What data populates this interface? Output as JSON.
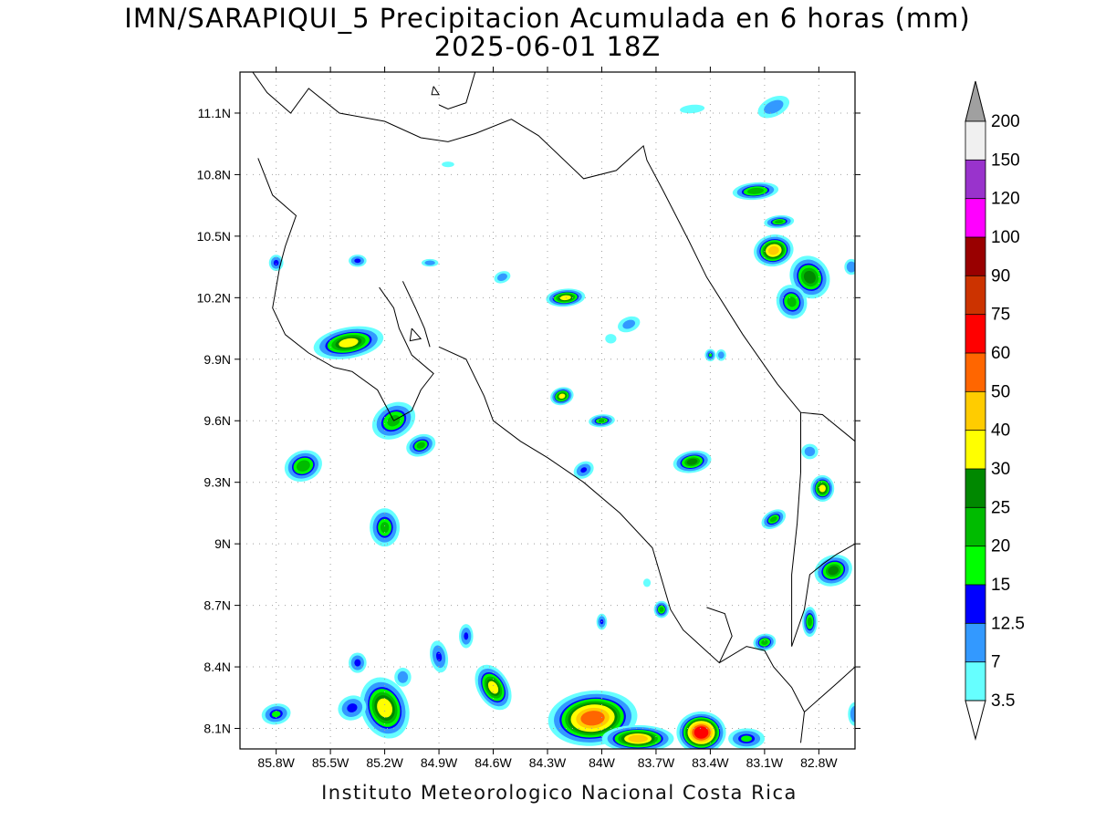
{
  "title": {
    "line1": "IMN/SARAPIQUI_5 Precipitacion Acumulada en 6 horas (mm)",
    "line2": "2025-06-01 18Z"
  },
  "footer": "Instituto Meteorologico Nacional Costa Rica",
  "map": {
    "lon_range": [
      -86.0,
      -82.6
    ],
    "lat_range": [
      8.0,
      11.3
    ],
    "grid": true,
    "lat_ticks": [
      {
        "value": 11.1,
        "label": "11.1N"
      },
      {
        "value": 10.8,
        "label": "10.8N"
      },
      {
        "value": 10.5,
        "label": "10.5N"
      },
      {
        "value": 10.2,
        "label": "10.2N"
      },
      {
        "value": 9.9,
        "label": "9.9N"
      },
      {
        "value": 9.6,
        "label": "9.6N"
      },
      {
        "value": 9.3,
        "label": "9.3N"
      },
      {
        "value": 9.0,
        "label": "9N"
      },
      {
        "value": 8.7,
        "label": "8.7N"
      },
      {
        "value": 8.4,
        "label": "8.4N"
      },
      {
        "value": 8.1,
        "label": "8.1N"
      }
    ],
    "lon_ticks": [
      {
        "value": -85.8,
        "label": "85.8W"
      },
      {
        "value": -85.5,
        "label": "85.5W"
      },
      {
        "value": -85.2,
        "label": "85.2W"
      },
      {
        "value": -84.9,
        "label": "84.9W"
      },
      {
        "value": -84.6,
        "label": "84.6W"
      },
      {
        "value": -84.3,
        "label": "84.3W"
      },
      {
        "value": -84.0,
        "label": "84W"
      },
      {
        "value": -83.7,
        "label": "83.7W"
      },
      {
        "value": -83.4,
        "label": "83.4W"
      },
      {
        "value": -83.1,
        "label": "83.1W"
      },
      {
        "value": -82.8,
        "label": "82.8W"
      }
    ],
    "coastline": [
      [
        [
          -85.93,
          11.3
        ],
        [
          -85.85,
          11.2
        ],
        [
          -85.72,
          11.1
        ],
        [
          -85.62,
          11.22
        ],
        [
          -85.45,
          11.1
        ],
        [
          -85.2,
          11.06
        ],
        [
          -85.0,
          10.98
        ],
        [
          -84.85,
          10.96
        ],
        [
          -84.7,
          11.0
        ],
        [
          -84.5,
          11.07
        ],
        [
          -84.35,
          10.99
        ],
        [
          -84.1,
          10.78
        ],
        [
          -83.92,
          10.82
        ],
        [
          -83.77,
          10.94
        ],
        [
          -83.75,
          10.87
        ],
        [
          -83.66,
          10.72
        ],
        [
          -83.52,
          10.48
        ],
        [
          -83.42,
          10.3
        ],
        [
          -83.22,
          10.02
        ],
        [
          -83.03,
          9.78
        ],
        [
          -82.9,
          9.64
        ],
        [
          -82.78,
          9.63
        ],
        [
          -82.6,
          9.5
        ]
      ],
      [
        [
          -85.9,
          10.88
        ],
        [
          -85.82,
          10.7
        ],
        [
          -85.69,
          10.6
        ],
        [
          -85.75,
          10.45
        ],
        [
          -85.78,
          10.35
        ],
        [
          -85.82,
          10.15
        ],
        [
          -85.75,
          10.02
        ],
        [
          -85.62,
          9.93
        ],
        [
          -85.48,
          9.86
        ],
        [
          -85.38,
          9.84
        ],
        [
          -85.24,
          9.75
        ],
        [
          -85.15,
          9.6
        ],
        [
          -85.05,
          9.65
        ],
        [
          -85.0,
          9.75
        ],
        [
          -84.93,
          9.83
        ],
        [
          -85.05,
          9.92
        ],
        [
          -85.12,
          10.05
        ],
        [
          -85.15,
          10.15
        ],
        [
          -85.23,
          10.25
        ]
      ],
      [
        [
          -84.9,
          9.96
        ],
        [
          -84.75,
          9.9
        ],
        [
          -84.65,
          9.72
        ],
        [
          -84.6,
          9.6
        ],
        [
          -84.45,
          9.5
        ],
        [
          -84.3,
          9.42
        ],
        [
          -84.1,
          9.3
        ],
        [
          -83.9,
          9.15
        ],
        [
          -83.72,
          8.98
        ],
        [
          -83.66,
          8.8
        ],
        [
          -83.62,
          8.68
        ],
        [
          -83.55,
          8.58
        ],
        [
          -83.45,
          8.5
        ],
        [
          -83.35,
          8.42
        ],
        [
          -83.28,
          8.55
        ],
        [
          -83.32,
          8.66
        ],
        [
          -83.42,
          8.69
        ]
      ],
      [
        [
          -83.35,
          8.42
        ],
        [
          -83.2,
          8.5
        ],
        [
          -83.1,
          8.48
        ],
        [
          -83.05,
          8.4
        ],
        [
          -82.95,
          8.3
        ],
        [
          -82.88,
          8.18
        ],
        [
          -82.9,
          8.03
        ]
      ],
      [
        [
          -82.6,
          8.4
        ],
        [
          -82.7,
          8.32
        ],
        [
          -82.88,
          8.18
        ]
      ],
      [
        [
          -82.95,
          8.5
        ],
        [
          -82.88,
          8.68
        ],
        [
          -82.85,
          8.85
        ],
        [
          -82.78,
          8.9
        ],
        [
          -82.7,
          8.95
        ],
        [
          -82.6,
          9.0
        ]
      ],
      [
        [
          -82.9,
          9.64
        ],
        [
          -82.9,
          9.35
        ],
        [
          -82.92,
          9.1
        ],
        [
          -82.95,
          8.85
        ],
        [
          -82.95,
          8.5
        ]
      ],
      [
        [
          -85.1,
          10.28
        ],
        [
          -85.03,
          10.15
        ],
        [
          -84.98,
          10.05
        ],
        [
          -84.95,
          9.96
        ]
      ],
      [
        [
          -85.05,
          10.05
        ],
        [
          -85.0,
          10.0
        ],
        [
          -85.06,
          9.99
        ],
        [
          -85.05,
          10.05
        ]
      ],
      [
        [
          -84.93,
          11.23
        ],
        [
          -84.9,
          11.19
        ],
        [
          -84.94,
          11.19
        ],
        [
          -84.93,
          11.23
        ]
      ],
      [
        [
          -84.7,
          11.3
        ],
        [
          -84.75,
          11.15
        ],
        [
          -84.85,
          11.12
        ],
        [
          -84.9,
          11.14
        ]
      ]
    ],
    "rain_cells": [
      {
        "lon": -85.4,
        "lat": 9.98,
        "rx": 0.18,
        "ry": 0.07,
        "peak": 32,
        "rot": -10
      },
      {
        "lon": -85.65,
        "lat": 9.38,
        "rx": 0.1,
        "ry": 0.07,
        "peak": 24,
        "rot": -20
      },
      {
        "lon": -85.15,
        "lat": 9.6,
        "rx": 0.12,
        "ry": 0.08,
        "peak": 22,
        "rot": -30
      },
      {
        "lon": -85.0,
        "lat": 9.48,
        "rx": 0.08,
        "ry": 0.05,
        "peak": 20,
        "rot": -20
      },
      {
        "lon": -85.2,
        "lat": 9.08,
        "rx": 0.08,
        "ry": 0.09,
        "peak": 20,
        "rot": 0
      },
      {
        "lon": -84.1,
        "lat": 9.36,
        "rx": 0.06,
        "ry": 0.04,
        "peak": 13,
        "rot": -30
      },
      {
        "lon": -84.2,
        "lat": 10.2,
        "rx": 0.1,
        "ry": 0.04,
        "peak": 32,
        "rot": -5
      },
      {
        "lon": -84.22,
        "lat": 9.72,
        "rx": 0.06,
        "ry": 0.04,
        "peak": 31,
        "rot": -15
      },
      {
        "lon": -84.0,
        "lat": 9.6,
        "rx": 0.07,
        "ry": 0.03,
        "peak": 20,
        "rot": -5
      },
      {
        "lon": -83.5,
        "lat": 9.4,
        "rx": 0.1,
        "ry": 0.05,
        "peak": 26,
        "rot": -10
      },
      {
        "lon": -83.4,
        "lat": 9.92,
        "rx": 0.03,
        "ry": 0.03,
        "peak": 15,
        "rot": 0
      },
      {
        "lon": -83.85,
        "lat": 10.07,
        "rx": 0.07,
        "ry": 0.04,
        "peak": 9,
        "rot": -20
      },
      {
        "lon": -84.55,
        "lat": 10.3,
        "rx": 0.05,
        "ry": 0.03,
        "peak": 10,
        "rot": -20
      },
      {
        "lon": -85.35,
        "lat": 10.38,
        "rx": 0.05,
        "ry": 0.03,
        "peak": 14,
        "rot": 0
      },
      {
        "lon": -85.8,
        "lat": 10.37,
        "rx": 0.04,
        "ry": 0.04,
        "peak": 14,
        "rot": 0
      },
      {
        "lon": -84.95,
        "lat": 10.37,
        "rx": 0.05,
        "ry": 0.02,
        "peak": 10,
        "rot": 0
      },
      {
        "lon": -83.05,
        "lat": 10.43,
        "rx": 0.1,
        "ry": 0.07,
        "peak": 42,
        "rot": -10
      },
      {
        "lon": -82.85,
        "lat": 10.3,
        "rx": 0.1,
        "ry": 0.1,
        "peak": 28,
        "rot": -30
      },
      {
        "lon": -82.95,
        "lat": 10.18,
        "rx": 0.08,
        "ry": 0.08,
        "peak": 22,
        "rot": -20
      },
      {
        "lon": -83.15,
        "lat": 10.72,
        "rx": 0.12,
        "ry": 0.04,
        "peak": 24,
        "rot": -5
      },
      {
        "lon": -83.02,
        "lat": 10.57,
        "rx": 0.08,
        "ry": 0.03,
        "peak": 20,
        "rot": -5
      },
      {
        "lon": -83.05,
        "lat": 11.13,
        "rx": 0.1,
        "ry": 0.05,
        "peak": 10,
        "rot": -25
      },
      {
        "lon": -83.5,
        "lat": 11.12,
        "rx": 0.1,
        "ry": 0.03,
        "peak": 5,
        "rot": -5
      },
      {
        "lon": -84.85,
        "lat": 10.85,
        "rx": 0.05,
        "ry": 0.02,
        "peak": 5,
        "rot": 0
      },
      {
        "lon": -82.78,
        "lat": 9.27,
        "rx": 0.06,
        "ry": 0.06,
        "peak": 32,
        "rot": 0
      },
      {
        "lon": -82.85,
        "lat": 9.45,
        "rx": 0.05,
        "ry": 0.04,
        "peak": 10,
        "rot": 0
      },
      {
        "lon": -83.05,
        "lat": 9.12,
        "rx": 0.07,
        "ry": 0.04,
        "peak": 20,
        "rot": -30
      },
      {
        "lon": -82.72,
        "lat": 8.87,
        "rx": 0.1,
        "ry": 0.07,
        "peak": 26,
        "rot": -20
      },
      {
        "lon": -82.85,
        "lat": 8.62,
        "rx": 0.04,
        "ry": 0.07,
        "peak": 22,
        "rot": 0
      },
      {
        "lon": -83.1,
        "lat": 8.52,
        "rx": 0.06,
        "ry": 0.04,
        "peak": 22,
        "rot": -10
      },
      {
        "lon": -83.67,
        "lat": 8.68,
        "rx": 0.04,
        "ry": 0.04,
        "peak": 22,
        "rot": 0
      },
      {
        "lon": -84.0,
        "lat": 8.62,
        "rx": 0.03,
        "ry": 0.04,
        "peak": 13,
        "rot": 0
      },
      {
        "lon": -85.2,
        "lat": 8.2,
        "rx": 0.12,
        "ry": 0.14,
        "peak": 35,
        "rot": -20
      },
      {
        "lon": -85.38,
        "lat": 8.2,
        "rx": 0.08,
        "ry": 0.06,
        "peak": 14,
        "rot": -20
      },
      {
        "lon": -85.8,
        "lat": 8.17,
        "rx": 0.08,
        "ry": 0.05,
        "peak": 16,
        "rot": -10
      },
      {
        "lon": -84.9,
        "lat": 8.45,
        "rx": 0.05,
        "ry": 0.08,
        "peak": 13,
        "rot": -10
      },
      {
        "lon": -84.75,
        "lat": 8.55,
        "rx": 0.04,
        "ry": 0.06,
        "peak": 13,
        "rot": 0
      },
      {
        "lon": -84.6,
        "lat": 8.3,
        "rx": 0.08,
        "ry": 0.11,
        "peak": 32,
        "rot": -30
      },
      {
        "lon": -84.05,
        "lat": 8.15,
        "rx": 0.22,
        "ry": 0.12,
        "peak": 55,
        "rot": -5
      },
      {
        "lon": -83.8,
        "lat": 8.05,
        "rx": 0.18,
        "ry": 0.06,
        "peak": 40,
        "rot": 0
      },
      {
        "lon": -83.45,
        "lat": 8.08,
        "rx": 0.12,
        "ry": 0.09,
        "peak": 72,
        "rot": 0
      },
      {
        "lon": -83.2,
        "lat": 8.05,
        "rx": 0.1,
        "ry": 0.05,
        "peak": 16,
        "rot": 0
      },
      {
        "lon": -85.1,
        "lat": 8.35,
        "rx": 0.05,
        "ry": 0.05,
        "peak": 10,
        "rot": 0
      },
      {
        "lon": -85.35,
        "lat": 8.42,
        "rx": 0.05,
        "ry": 0.05,
        "peak": 14,
        "rot": 0
      },
      {
        "lon": -82.6,
        "lat": 8.17,
        "rx": 0.04,
        "ry": 0.06,
        "peak": 12,
        "rot": 0
      },
      {
        "lon": -82.62,
        "lat": 10.35,
        "rx": 0.04,
        "ry": 0.04,
        "peak": 12,
        "rot": 0
      },
      {
        "lon": -83.34,
        "lat": 9.92,
        "rx": 0.03,
        "ry": 0.03,
        "peak": 10,
        "rot": 0
      },
      {
        "lon": -83.75,
        "lat": 8.81,
        "rx": 0.03,
        "ry": 0.03,
        "peak": 5,
        "rot": 0
      },
      {
        "lon": -83.95,
        "lat": 10.0,
        "rx": 0.04,
        "ry": 0.03,
        "peak": 6,
        "rot": 0
      }
    ]
  },
  "colorbar": {
    "labels": [
      "200",
      "150",
      "120",
      "100",
      "90",
      "75",
      "60",
      "50",
      "40",
      "30",
      "25",
      "20",
      "15",
      "12.5",
      "7",
      "3.5"
    ],
    "colors": [
      "#f0f0f0",
      "#9933cc",
      "#ff00ff",
      "#990000",
      "#cc3300",
      "#ff0000",
      "#ff6600",
      "#ffcc00",
      "#ffff00",
      "#008800",
      "#00bb00",
      "#00ff00",
      "#0000ff",
      "#3399ff",
      "#66ffff"
    ],
    "top_arrow_color": "#a0a0a0",
    "bottom_arrow_color": "#ffffff"
  },
  "levels": [
    3.5,
    7,
    12.5,
    15,
    20,
    25,
    30,
    40,
    50,
    60,
    75,
    90,
    100,
    120,
    150,
    200
  ],
  "level_colors": [
    "#66ffff",
    "#3399ff",
    "#0000ff",
    "#00ff00",
    "#00bb00",
    "#008800",
    "#ffff00",
    "#ffcc00",
    "#ff6600",
    "#ff0000",
    "#cc3300",
    "#990000",
    "#ff00ff",
    "#9933cc",
    "#f0f0f0"
  ]
}
